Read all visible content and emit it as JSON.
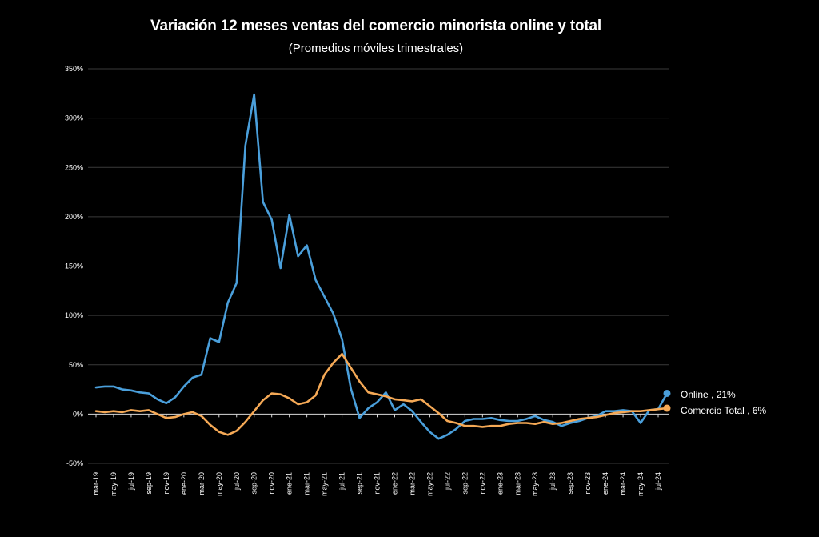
{
  "chart_data": {
    "type": "line",
    "title": "Variación 12 meses ventas del comercio minorista online y total",
    "subtitle": "(Promedios móviles trimestrales)",
    "ylim": [
      -50,
      350
    ],
    "yticks": [
      -50,
      0,
      50,
      100,
      150,
      200,
      250,
      300,
      350
    ],
    "ytick_labels": [
      "-50%",
      "0%",
      "50%",
      "100%",
      "150%",
      "200%",
      "250%",
      "300%",
      "350%"
    ],
    "grid": true,
    "x": [
      "mar-19",
      "abr-19",
      "may-19",
      "jun-19",
      "jul-19",
      "ago-19",
      "sep-19",
      "oct-19",
      "nov-19",
      "dic-19",
      "ene-20",
      "feb-20",
      "mar-20",
      "abr-20",
      "may-20",
      "jun-20",
      "jul-20",
      "ago-20",
      "sep-20",
      "oct-20",
      "nov-20",
      "dic-20",
      "ene-21",
      "feb-21",
      "mar-21",
      "abr-21",
      "may-21",
      "jun-21",
      "jul-21",
      "ago-21",
      "sep-21",
      "oct-21",
      "nov-21",
      "dic-21",
      "ene-22",
      "feb-22",
      "mar-22",
      "abr-22",
      "may-22",
      "jun-22",
      "jul-22",
      "ago-22",
      "sep-22",
      "oct-22",
      "nov-22",
      "dic-22",
      "ene-23",
      "feb-23",
      "mar-23",
      "abr-23",
      "may-23",
      "jun-23",
      "jul-23",
      "ago-23",
      "sep-23",
      "oct-23",
      "nov-23",
      "dic-23",
      "ene-24",
      "feb-24",
      "mar-24",
      "abr-24",
      "may-24",
      "jun-24",
      "jul-24",
      "ago-24"
    ],
    "x_tick_labels": [
      "mar-19",
      "may-19",
      "jul-19",
      "sep-19",
      "nov-19",
      "ene-20",
      "mar-20",
      "may-20",
      "jul-20",
      "sep-20",
      "nov-20",
      "ene-21",
      "mar-21",
      "may-21",
      "jul-21",
      "sep-21",
      "nov-21",
      "ene-22",
      "mar-22",
      "may-22",
      "jul-22",
      "sep-22",
      "nov-22",
      "ene-23",
      "mar-23",
      "may-23",
      "jul-23",
      "sep-23",
      "nov-23",
      "ene-24",
      "mar-24",
      "may-24",
      "jul-24"
    ],
    "series": [
      {
        "name": "Online",
        "color": "#4A9FDB",
        "end_label": "Online , 21%",
        "values": [
          27,
          28,
          28,
          25,
          24,
          22,
          21,
          15,
          11,
          17,
          28,
          37,
          40,
          77,
          73,
          113,
          133,
          272,
          324,
          215,
          197,
          148,
          202,
          160,
          171,
          136,
          119,
          102,
          76,
          26,
          -4,
          6,
          12,
          22,
          4,
          10,
          3,
          -8,
          -18,
          -25,
          -21,
          -15,
          -7,
          -5,
          -5,
          -4,
          -6,
          -7,
          -7,
          -5,
          -2,
          -6,
          -8,
          -12,
          -9,
          -7,
          -4,
          -2,
          3,
          3,
          4,
          3,
          -9,
          4,
          5,
          21
        ]
      },
      {
        "name": "Comercio Total",
        "color": "#F5A956",
        "end_label": "Comercio Total , 6%",
        "values": [
          3,
          2,
          3,
          2,
          4,
          3,
          4,
          0,
          -4,
          -3,
          0,
          2,
          -2,
          -11,
          -18,
          -21,
          -17,
          -8,
          3,
          14,
          21,
          20,
          16,
          10,
          12,
          19,
          40,
          52,
          61,
          47,
          33,
          22,
          20,
          18,
          15,
          14,
          13,
          15,
          8,
          1,
          -7,
          -9,
          -12,
          -12,
          -13,
          -12,
          -12,
          -10,
          -9,
          -9,
          -10,
          -8,
          -10,
          -9,
          -7,
          -5,
          -4,
          -3,
          -1,
          1,
          2,
          3,
          3,
          4,
          5,
          6
        ]
      }
    ]
  }
}
